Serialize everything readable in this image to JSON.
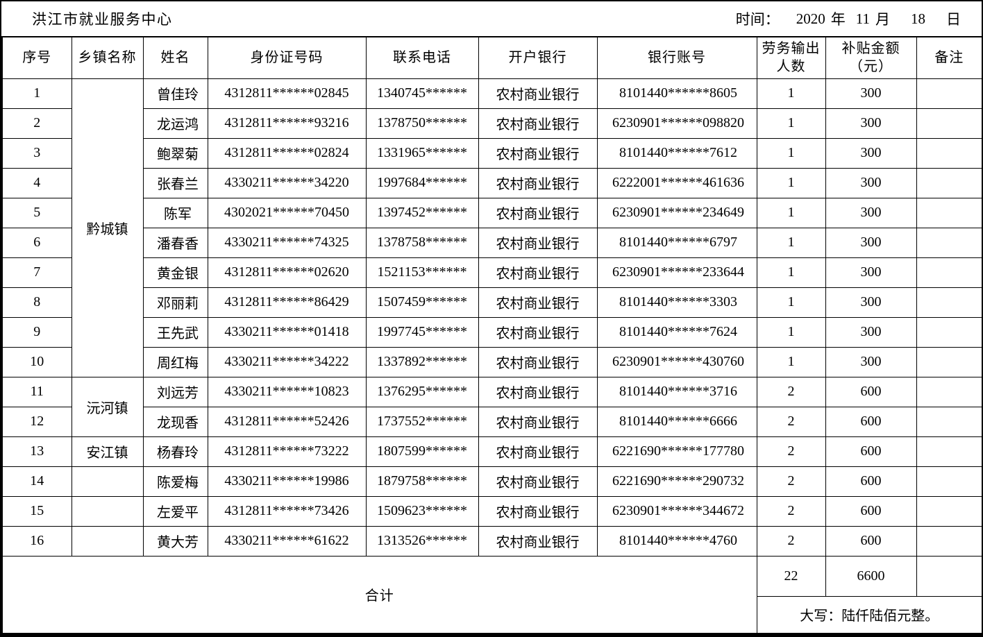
{
  "header": {
    "org_name": "洪江市就业服务中心",
    "date": {
      "label": "时间：",
      "year": "2020",
      "year_unit": "年",
      "month": "11",
      "month_unit": "月",
      "day": "18",
      "day_unit": "日"
    }
  },
  "table": {
    "headers": [
      "序号",
      "乡镇名称",
      "姓名",
      "身份证号码",
      "联系电话",
      "开户银行",
      "银行账号",
      {
        "line1": "劳务输出",
        "line2": "人数"
      },
      {
        "line1": "补贴金额",
        "line2": "（元）"
      },
      "备注"
    ],
    "rows": [
      {
        "no": "1",
        "township": "黔城镇",
        "township_rowspan": 10,
        "name": "曾佳玲",
        "id_number": "4312811******02845",
        "phone": "1340745******",
        "bank": "农村商业银行",
        "account": "8101440******8605",
        "count": "1",
        "amount": "300",
        "remark": ""
      },
      {
        "no": "2",
        "name": "龙运鸿",
        "id_number": "4312811******93216",
        "phone": "1378750******",
        "bank": "农村商业银行",
        "account": "6230901******098820",
        "count": "1",
        "amount": "300",
        "remark": ""
      },
      {
        "no": "3",
        "name": "鲍翠菊",
        "id_number": "4312811******02824",
        "phone": "1331965******",
        "bank": "农村商业银行",
        "account": "8101440******7612",
        "count": "1",
        "amount": "300",
        "remark": ""
      },
      {
        "no": "4",
        "name": "张春兰",
        "id_number": "4330211******34220",
        "phone": "1997684******",
        "bank": "农村商业银行",
        "account": "6222001******461636",
        "count": "1",
        "amount": "300",
        "remark": ""
      },
      {
        "no": "5",
        "name": "陈军",
        "id_number": "4302021******70450",
        "phone": "1397452******",
        "bank": "农村商业银行",
        "account": "6230901******234649",
        "count": "1",
        "amount": "300",
        "remark": ""
      },
      {
        "no": "6",
        "name": "潘春香",
        "id_number": "4330211******74325",
        "phone": "1378758******",
        "bank": "农村商业银行",
        "account": "8101440******6797",
        "count": "1",
        "amount": "300",
        "remark": ""
      },
      {
        "no": "7",
        "name": "黄金银",
        "id_number": "4312811******02620",
        "phone": "1521153******",
        "bank": "农村商业银行",
        "account": "6230901******233644",
        "count": "1",
        "amount": "300",
        "remark": ""
      },
      {
        "no": "8",
        "name": "邓丽莉",
        "id_number": "4312811******86429",
        "phone": "1507459******",
        "bank": "农村商业银行",
        "account": "8101440******3303",
        "count": "1",
        "amount": "300",
        "remark": ""
      },
      {
        "no": "9",
        "name": "王先武",
        "id_number": "4330211******01418",
        "phone": "1997745******",
        "bank": "农村商业银行",
        "account": "8101440******7624",
        "count": "1",
        "amount": "300",
        "remark": ""
      },
      {
        "no": "10",
        "name": "周红梅",
        "id_number": "4330211******34222",
        "phone": "1337892******",
        "bank": "农村商业银行",
        "account": "6230901******430760",
        "count": "1",
        "amount": "300",
        "remark": ""
      },
      {
        "no": "11",
        "township": "沅河镇",
        "township_rowspan": 2,
        "name": "刘远芳",
        "id_number": "4330211******10823",
        "phone": "1376295******",
        "bank": "农村商业银行",
        "account": "8101440******3716",
        "count": "2",
        "amount": "600",
        "remark": ""
      },
      {
        "no": "12",
        "name": "龙现香",
        "id_number": "4312811******52426",
        "phone": "1737552******",
        "bank": "农村商业银行",
        "account": "8101440******6666",
        "count": "2",
        "amount": "600",
        "remark": ""
      },
      {
        "no": "13",
        "township": "安江镇",
        "name": "杨春玲",
        "id_number": "4312811******73222",
        "phone": "1807599******",
        "bank": "农村商业银行",
        "account": "6221690******177780",
        "count": "2",
        "amount": "600",
        "remark": ""
      },
      {
        "no": "14",
        "township": "",
        "name": "陈爱梅",
        "id_number": "4330211******19986",
        "phone": "1879758******",
        "bank": "农村商业银行",
        "account": "6221690******290732",
        "count": "2",
        "amount": "600",
        "remark": ""
      },
      {
        "no": "15",
        "township": "",
        "name": "左爱平",
        "id_number": "4312811******73426",
        "phone": "1509623******",
        "bank": "农村商业银行",
        "account": "6230901******344672",
        "count": "2",
        "amount": "600",
        "remark": ""
      },
      {
        "no": "16",
        "township": "",
        "name": "黄大芳",
        "id_number": "4330211******61622",
        "phone": "1313526******",
        "bank": "农村商业银行",
        "account": "8101440******4760",
        "count": "2",
        "amount": "600",
        "remark": ""
      }
    ]
  },
  "footer": {
    "total_label": "合计",
    "total_count": "22",
    "total_amount": "6600",
    "amount_in_words": "大写：陆仟陆佰元整。",
    "remark": ""
  },
  "colors": {
    "background": "#ffffff",
    "border": "#000000",
    "text": "#000000"
  }
}
